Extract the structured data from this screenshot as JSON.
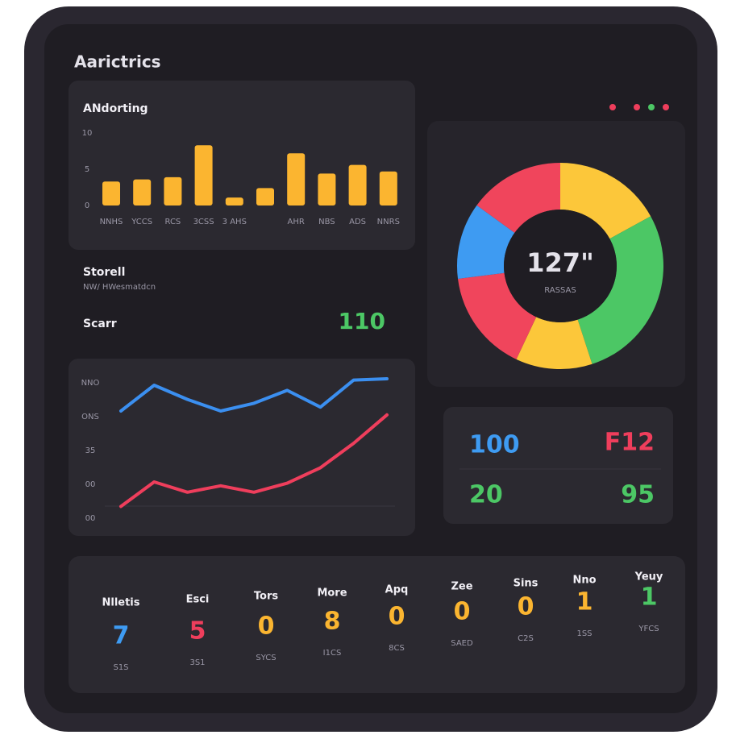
{
  "header": {
    "title": "Aarictrics"
  },
  "bar_chart": {
    "title": "ANdorting",
    "categories": [
      "NNHS",
      "YCCS",
      "RCS",
      "3CSS",
      "3 AHS",
      null,
      "AHR",
      "NBS",
      "ADS",
      "NNRS"
    ],
    "values": [
      3.3,
      3.6,
      3.9,
      8.3,
      1.1,
      2.4,
      7.2,
      4.4,
      5.6,
      4.7
    ],
    "color": "#fbb530",
    "ylim": [
      0,
      10
    ],
    "yticks": [
      0,
      5,
      10
    ]
  },
  "info": {
    "title": "Storell",
    "subtitle": "NW/ HWesmatdcn",
    "label": "Scarr",
    "value": "110"
  },
  "line_chart": {
    "y_labels": [
      "NNO",
      "ONS",
      "35",
      "00",
      "00"
    ],
    "ylim": [
      0,
      100
    ],
    "series": [
      {
        "color": "#3b8ff0",
        "values": [
          75,
          95,
          84,
          75,
          81,
          91,
          78,
          99,
          100
        ]
      },
      {
        "color": "#ef3e5c",
        "values": [
          1,
          20,
          12,
          17,
          12,
          19,
          31,
          50,
          72
        ]
      }
    ]
  },
  "donut": {
    "center_value": "127\"",
    "center_label": "RASSAS",
    "values": [
      17,
      28,
      12,
      16,
      12,
      15
    ],
    "colors": [
      "#fcc73a",
      "#4cc765",
      "#fcc73a",
      "#f0455c",
      "#3e9bf2",
      "#f0455c"
    ]
  },
  "stats": [
    {
      "value": "100",
      "color": "#3e9bf2"
    },
    {
      "value": "F12",
      "color": "#ef3e5c"
    },
    {
      "value": "20",
      "color": "#4cc765"
    },
    {
      "value": "95",
      "color": "#4cc765"
    }
  ],
  "counters": [
    {
      "label": "Nlletis",
      "value": "7",
      "sub": "S1S",
      "color": "#3e9bf2"
    },
    {
      "label": "Esci",
      "value": "5",
      "sub": "3S1",
      "color": "#ef3e5c"
    },
    {
      "label": "Tors",
      "value": "0",
      "sub": "SYCS",
      "color": "#fbb530"
    },
    {
      "label": "More",
      "value": "8",
      "sub": "I1CS",
      "color": "#fbb530"
    },
    {
      "label": "Apq",
      "value": "0",
      "sub": "8CS",
      "color": "#fbb530"
    },
    {
      "label": "Zee",
      "value": "0",
      "sub": "SAED",
      "color": "#fbb530"
    },
    {
      "label": "Sins",
      "value": "0",
      "sub": "C2S",
      "color": "#fbb530"
    },
    {
      "label": "Nno",
      "value": "1",
      "sub": "1SS",
      "color": "#fbb530"
    },
    {
      "label": "Yeuy",
      "value": "1",
      "sub": "YFCS",
      "color": "#4cc765"
    }
  ]
}
